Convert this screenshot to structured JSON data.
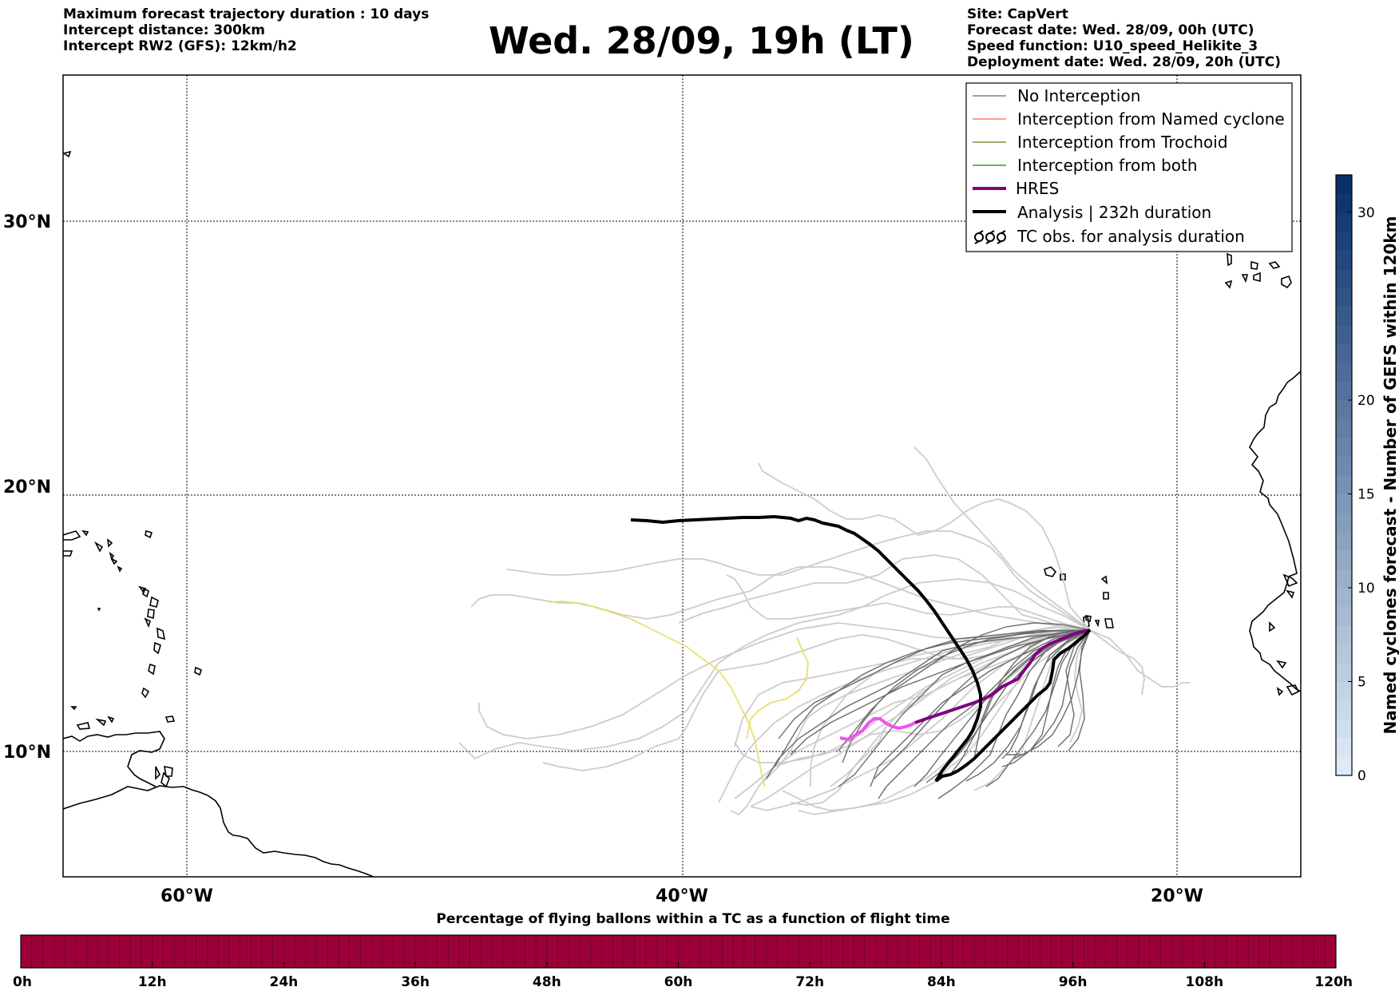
{
  "header": {
    "left_lines": [
      "Maximum forecast trajectory duration : 10 days",
      "Intercept distance: 300km",
      "Intercept RW2 (GFS):  12km/h2"
    ],
    "title": "Wed. 28/09, 19h (LT)",
    "right_lines": [
      "Site: CapVert",
      "Forecast date: Wed. 28/09, 00h (UTC)",
      "Speed function: U10_speed_Helikite_3",
      "Deployment date: Wed. 28/09, 20h (UTC)"
    ]
  },
  "map": {
    "lat_labels": [
      {
        "text": "30°N",
        "lat": 30
      },
      {
        "text": "20°N",
        "lat": 20
      },
      {
        "text": "10°N",
        "lat": 10
      }
    ],
    "lon_labels": [
      {
        "text": "60°W",
        "lon": -60
      },
      {
        "text": "40°W",
        "lon": -40
      },
      {
        "text": "20°W",
        "lon": -20
      }
    ],
    "extent": {
      "lon_min": -65,
      "lon_max": -15,
      "lat_min": 5.3,
      "lat_max": 34.6
    }
  },
  "legend": {
    "items": [
      {
        "label": "No Interception",
        "color": "#808080",
        "style": "thin"
      },
      {
        "label": "Interception from Named cyclone",
        "color": "#ff7f50",
        "style": "thin"
      },
      {
        "label": "Interception from Trochoid",
        "color": "#8b8b3a",
        "style": "thin"
      },
      {
        "label": "Interception from both",
        "color": "#2ca02c",
        "style": "thin"
      },
      {
        "label": "HRES",
        "color": "#800080",
        "style": "thick"
      },
      {
        "label": "Analysis | 232h duration",
        "color": "#000000",
        "style": "thick"
      },
      {
        "label": "TC obs. for analysis duration",
        "color": "#000000",
        "style": "symbol"
      }
    ]
  },
  "colorbar_right": {
    "label": "Named cyclones forecast - Number of GEFS within 120km",
    "ticks": [
      "0",
      "5",
      "10",
      "15",
      "20",
      "30"
    ],
    "tick_values": [
      0,
      5,
      10,
      15,
      20,
      30
    ],
    "max": 32
  },
  "colorbar_bottom": {
    "label": "Percentage of flying ballons within a TC as a function of flight time",
    "ticks": [
      "0h",
      "12h",
      "24h",
      "36h",
      "48h",
      "60h",
      "72h",
      "84h",
      "96h",
      "108h",
      "120h"
    ],
    "fill_color": "#9b0039"
  },
  "colors": {
    "analysis": "#000000",
    "hres": "#800080",
    "hres_light": "#ee55ee",
    "no_interception_dark": "#6b6b6b",
    "no_interception_light": "#cccccc",
    "yellow_track": "#e8e070"
  }
}
